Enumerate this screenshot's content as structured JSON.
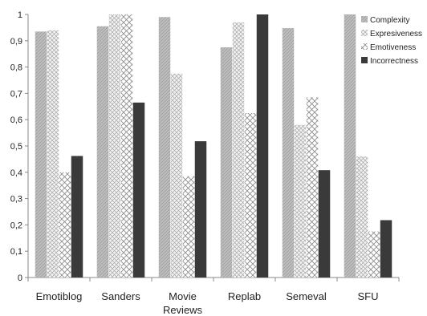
{
  "chart_data": {
    "type": "bar",
    "categories": [
      [
        "Emotiblog"
      ],
      [
        "Sanders"
      ],
      [
        "Movie",
        "Reviews"
      ],
      [
        "Replab"
      ],
      [
        "Semeval"
      ],
      [
        "SFU"
      ]
    ],
    "series": [
      {
        "name": "Complexity",
        "values": [
          0.935,
          0.955,
          0.99,
          0.875,
          0.948,
          1.0
        ]
      },
      {
        "name": "Expresiveness",
        "values": [
          0.94,
          1.0,
          0.775,
          0.97,
          0.58,
          0.46
        ]
      },
      {
        "name": "Emotiveness",
        "values": [
          0.4,
          1.0,
          0.385,
          0.625,
          0.685,
          0.175
        ]
      },
      {
        "name": "Incorrectness",
        "values": [
          0.462,
          0.665,
          0.518,
          1.0,
          0.408,
          0.218
        ]
      }
    ],
    "ylim": [
      0,
      1
    ],
    "yticks": [
      "0",
      "0,1",
      "0,2",
      "0,3",
      "0,4",
      "0,5",
      "0,6",
      "0,7",
      "0,8",
      "0,9",
      "1"
    ],
    "legend_position": "top-right",
    "colors": [
      "#b3b3b3",
      "#d6d6d6",
      "#e0e0e0",
      "#3a3a3a"
    ],
    "grid": false
  }
}
